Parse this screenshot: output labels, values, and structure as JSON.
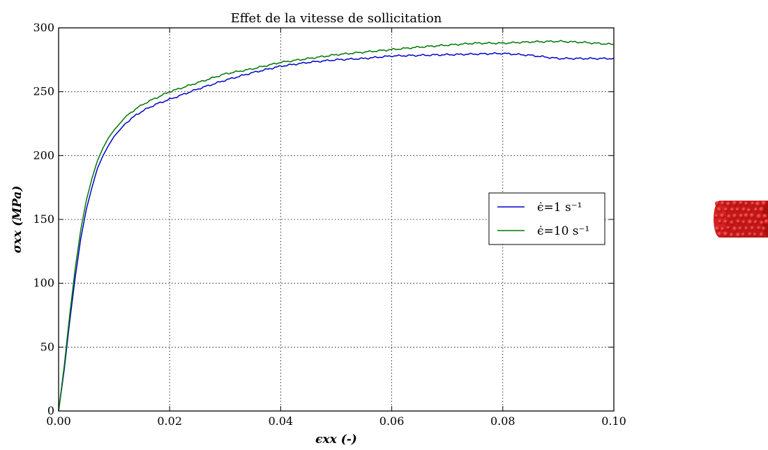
{
  "chart_data": {
    "type": "line",
    "title": "Effet de la vitesse de sollicitation",
    "xlabel": "ϵxx (-)",
    "ylabel": "σxx (MPa)",
    "xlim": [
      0,
      0.1
    ],
    "ylim": [
      0,
      300
    ],
    "xticks": [
      "0.00",
      "0.02",
      "0.04",
      "0.06",
      "0.08",
      "0.10"
    ],
    "yticks": [
      "0",
      "50",
      "100",
      "150",
      "200",
      "250",
      "300"
    ],
    "grid": true,
    "legend_position": "center-right",
    "series": [
      {
        "name": "ϵ̇=1 s⁻¹",
        "color": "#0000cc",
        "x": [
          0,
          0.001,
          0.002,
          0.003,
          0.004,
          0.005,
          0.006,
          0.007,
          0.008,
          0.009,
          0.01,
          0.012,
          0.014,
          0.016,
          0.018,
          0.02,
          0.025,
          0.03,
          0.035,
          0.04,
          0.045,
          0.05,
          0.055,
          0.06,
          0.065,
          0.07,
          0.075,
          0.08,
          0.085,
          0.09,
          0.095,
          0.1
        ],
        "y": [
          0,
          32,
          70,
          105,
          135,
          158,
          175,
          190,
          200,
          208,
          215,
          225,
          232,
          237,
          241,
          244,
          252,
          259,
          265,
          270,
          273,
          275,
          276,
          278,
          278.5,
          279,
          279.5,
          280,
          278.5,
          276,
          276,
          276
        ]
      },
      {
        "name": "ϵ̇=10 s⁻¹",
        "color": "#007700",
        "x": [
          0,
          0.001,
          0.002,
          0.003,
          0.004,
          0.005,
          0.006,
          0.007,
          0.008,
          0.009,
          0.01,
          0.012,
          0.014,
          0.016,
          0.018,
          0.02,
          0.025,
          0.03,
          0.035,
          0.04,
          0.045,
          0.05,
          0.055,
          0.06,
          0.065,
          0.07,
          0.075,
          0.08,
          0.085,
          0.09,
          0.095,
          0.1
        ],
        "y": [
          0,
          35,
          75,
          112,
          142,
          165,
          182,
          196,
          206,
          214,
          220,
          230,
          237,
          242,
          246,
          250,
          257,
          264,
          268,
          273,
          276,
          279,
          281,
          283,
          285,
          286.5,
          288,
          288,
          289,
          289.5,
          288.5,
          287
        ]
      }
    ]
  },
  "thumbnail": {
    "name": "red particle-packed cylinder",
    "color": "#d62020"
  }
}
